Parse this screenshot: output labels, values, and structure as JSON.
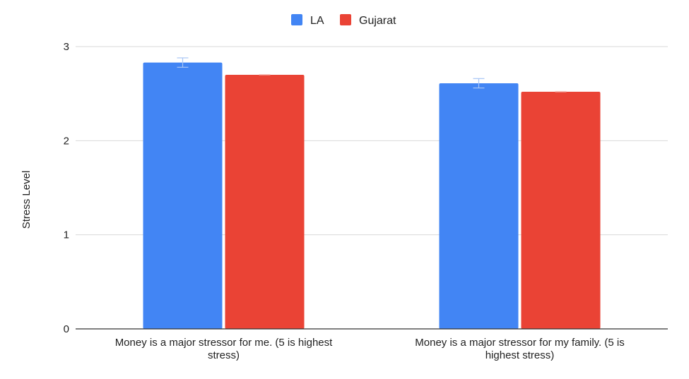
{
  "chart_data": {
    "type": "bar",
    "title": "",
    "xlabel": "",
    "ylabel": "Stress Level",
    "ylim": [
      0,
      3
    ],
    "yticks": [
      "0",
      "1",
      "2",
      "3"
    ],
    "grid": true,
    "legend_position": "top-center",
    "categories": [
      [
        "Money is a major stressor for me. (5 is highest",
        "stress)"
      ],
      [
        "Money is a major stressor for my family. (5 is",
        "highest stress)"
      ]
    ],
    "series": [
      {
        "name": "LA",
        "color": "#4285f4",
        "values": [
          2.83,
          2.61
        ],
        "error": [
          0.05,
          0.05
        ],
        "error_color": "#a9c6f5"
      },
      {
        "name": "Gujarat",
        "color": "#ea4335",
        "values": [
          2.7,
          2.52
        ],
        "error": [
          0.0,
          0.0
        ],
        "error_color": "#f3a89f"
      }
    ]
  }
}
